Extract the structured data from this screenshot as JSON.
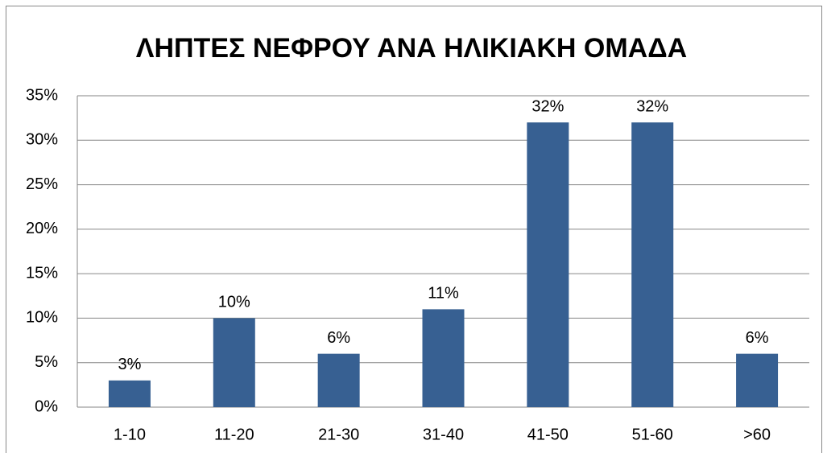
{
  "chart_data": {
    "type": "bar",
    "title": "ΛΗΠΤΕΣ ΝΕΦΡΟΥ ΑΝΑ ΗΛΙΚΙΑΚΗ ΟΜΑΔΑ",
    "categories": [
      "1-10",
      "11-20",
      "21-30",
      "31-40",
      "41-50",
      "51-60",
      ">60"
    ],
    "values": [
      3,
      10,
      6,
      11,
      32,
      32,
      6
    ],
    "value_labels": [
      "3%",
      "10%",
      "6%",
      "11%",
      "32%",
      "32%",
      "6%"
    ],
    "color": "#376092",
    "ylim": [
      0,
      35
    ],
    "yticks": [
      {
        "value": 0,
        "label": "0%"
      },
      {
        "value": 5,
        "label": "5%"
      },
      {
        "value": 10,
        "label": "10%"
      },
      {
        "value": 15,
        "label": "15%"
      },
      {
        "value": 20,
        "label": "20%"
      },
      {
        "value": 25,
        "label": "25%"
      },
      {
        "value": 30,
        "label": "30%"
      },
      {
        "value": 35,
        "label": "35%"
      }
    ],
    "grid": true
  }
}
